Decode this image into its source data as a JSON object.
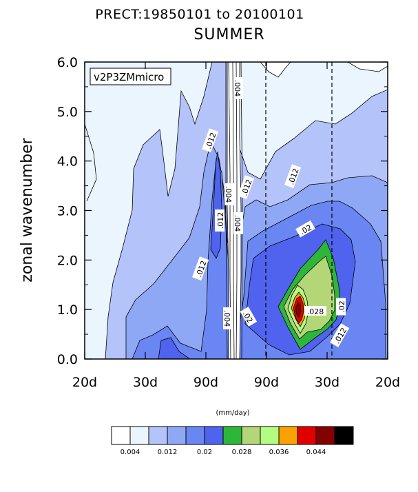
{
  "chart_data": {
    "type": "heatmap",
    "title": "PRECT:19850101 to 20100101",
    "subtitle": "SUMMER",
    "ylabel": "zonal wavenumber",
    "xlabel": "",
    "run_label": "v2P3ZMmicro",
    "ylim": [
      0,
      6
    ],
    "yticks": [
      "0.0",
      "1.0",
      "2.0",
      "3.0",
      "4.0",
      "5.0",
      "6.0"
    ],
    "xticks": [
      "20d",
      "30d",
      "90d",
      "90d",
      "30d",
      "20d"
    ],
    "dashed_reference_ticks": [
      "90d",
      "30d"
    ],
    "units_label": "(mm/day)",
    "colorbar": {
      "colors": [
        "#ffffff",
        "#eaf5fe",
        "#b4c3fa",
        "#8fa8f6",
        "#6a86f3",
        "#4f63ee",
        "#2db63a",
        "#b3d677",
        "#b4fb82",
        "#fba100",
        "#e10000",
        "#850000",
        "#000000"
      ],
      "labels": [
        "0.004",
        "0.012",
        "0.02",
        "0.028",
        "0.036",
        "0.044"
      ]
    },
    "contour_labels": [
      ".004",
      ".004",
      ".004",
      ".004",
      ".012",
      ".012",
      ".012",
      ".012",
      ".012",
      ".012",
      ".02",
      ".02",
      ".02",
      ".028"
    ]
  }
}
